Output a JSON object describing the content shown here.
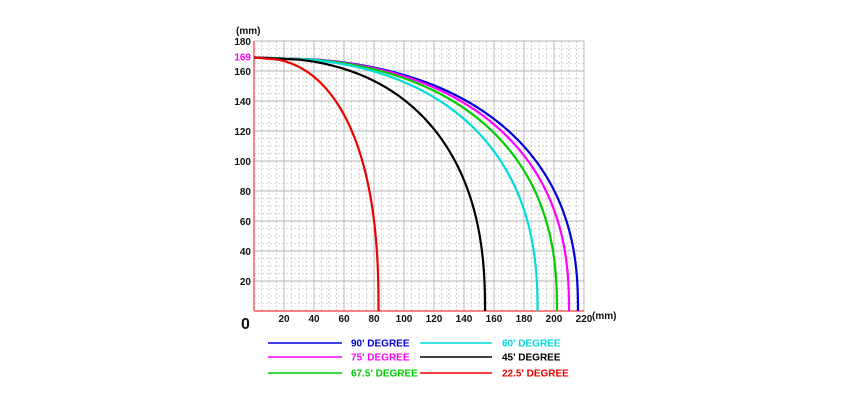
{
  "chart_data": {
    "type": "line",
    "x_unit": "(mm)",
    "y_unit": "(mm)",
    "origin_label": "0",
    "highlight_label": "169",
    "highlight_value": 169,
    "xlim": [
      0,
      220
    ],
    "ylim": [
      0,
      180
    ],
    "x_ticks": [
      20,
      40,
      60,
      80,
      100,
      120,
      140,
      160,
      180,
      200,
      220
    ],
    "y_ticks": [
      20,
      40,
      60,
      80,
      100,
      120,
      140,
      160,
      180
    ],
    "grid": true,
    "colors": {
      "axis": "#ff5a5a",
      "grid": "#b4b4b4",
      "highlight": "#ff00ff"
    },
    "series": [
      {
        "name": "90' DEGREE",
        "color": "#0000dd",
        "x_end": 216
      },
      {
        "name": "75' DEGREE",
        "color": "#ff00ff",
        "x_end": 210
      },
      {
        "name": "67.5' DEGREE",
        "color": "#00cc00",
        "x_end": 202
      },
      {
        "name": "60' DEGREE",
        "color": "#00dddd",
        "x_end": 189
      },
      {
        "name": "45' DEGREE",
        "color": "#000000",
        "x_end": 154
      },
      {
        "name": "22.5' DEGREE",
        "color": "#ee0000",
        "x_end": 83
      }
    ],
    "legend": {
      "placement": "bottom",
      "rows": [
        [
          "90' DEGREE",
          "60' DEGREE"
        ],
        [
          "75' DEGREE",
          "45' DEGREE"
        ],
        [
          "67.5' DEGREE",
          "22.5' DEGREE"
        ]
      ]
    }
  }
}
